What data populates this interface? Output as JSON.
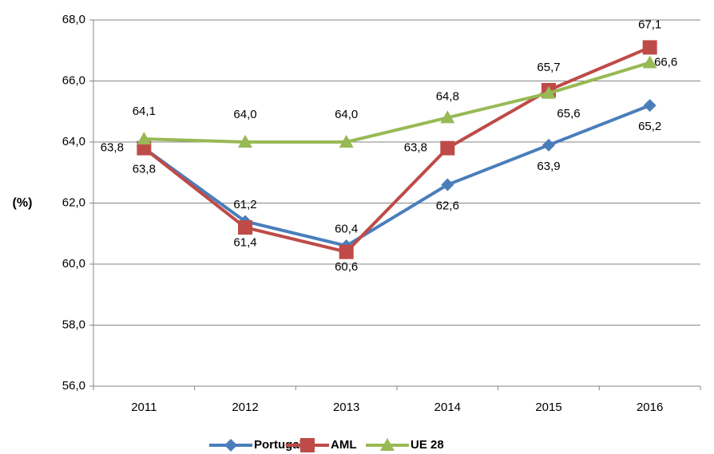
{
  "chart_data": {
    "type": "line",
    "y_label": "(%)",
    "categories": [
      "2011",
      "2012",
      "2013",
      "2014",
      "2015",
      "2016"
    ],
    "series": [
      {
        "name": "Portugal",
        "color": "#4a7ebb",
        "marker": "diamond",
        "values": [
          63.8,
          61.4,
          60.6,
          62.6,
          63.9,
          65.2
        ],
        "value_labels": [
          "63,8",
          "61,4",
          "60,6",
          "62,6",
          "63,9",
          "65,2"
        ]
      },
      {
        "name": "AML",
        "color": "#be4b48",
        "marker": "square",
        "values": [
          63.8,
          61.2,
          60.4,
          63.8,
          65.7,
          67.1
        ],
        "value_labels": [
          "63,8",
          "61,2",
          "60,4",
          "63,8",
          "65,7",
          "67,1"
        ]
      },
      {
        "name": "UE 28",
        "color": "#98b954",
        "marker": "triangle",
        "values": [
          64.1,
          64.0,
          64.0,
          64.8,
          65.6,
          66.6
        ],
        "value_labels": [
          "64,1",
          "64,0",
          "64,0",
          "64,8",
          "65,6",
          "66,6"
        ]
      }
    ],
    "ylim": [
      56,
      68
    ],
    "yticks": [
      {
        "value": 56,
        "label": "56,0"
      },
      {
        "value": 58,
        "label": "58,0"
      },
      {
        "value": 60,
        "label": "60,0"
      },
      {
        "value": 62,
        "label": "62,0"
      },
      {
        "value": 64,
        "label": "64,0"
      },
      {
        "value": 66,
        "label": "66,0"
      },
      {
        "value": 68,
        "label": "68,0"
      }
    ],
    "grid": true,
    "legend": "bottom"
  }
}
